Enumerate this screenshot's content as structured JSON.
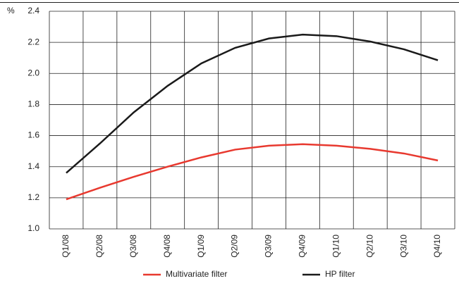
{
  "chart_data": {
    "type": "line",
    "y_label": "%",
    "categories": [
      "Q1/08",
      "Q2/08",
      "Q3/08",
      "Q4/08",
      "Q1/09",
      "Q2/09",
      "Q3/09",
      "Q4/09",
      "Q1/10",
      "Q2/10",
      "Q3/10",
      "Q4/10"
    ],
    "series": [
      {
        "name": "Multivariate filter",
        "color": "#e8392f",
        "values": [
          1.19,
          1.265,
          1.335,
          1.4,
          1.46,
          1.51,
          1.535,
          1.545,
          1.535,
          1.515,
          1.485,
          1.44
        ]
      },
      {
        "name": "HP filter",
        "color": "#1a1a1a",
        "values": [
          1.36,
          1.55,
          1.75,
          1.92,
          2.065,
          2.165,
          2.225,
          2.25,
          2.24,
          2.205,
          2.155,
          2.085
        ]
      }
    ],
    "ylim": [
      1.0,
      2.4
    ],
    "yticks": [
      {
        "value": 1.0,
        "label": "1.0"
      },
      1.2,
      1.4,
      1.6,
      1.8,
      {
        "value": 2.0,
        "label": "2.0"
      },
      2.2,
      2.4
    ],
    "grid": true
  }
}
